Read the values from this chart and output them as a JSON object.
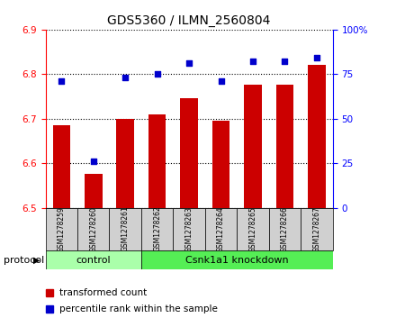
{
  "title": "GDS5360 / ILMN_2560804",
  "samples": [
    "GSM1278259",
    "GSM1278260",
    "GSM1278261",
    "GSM1278262",
    "GSM1278263",
    "GSM1278264",
    "GSM1278265",
    "GSM1278266",
    "GSM1278267"
  ],
  "bar_values": [
    6.685,
    6.575,
    6.7,
    6.71,
    6.745,
    6.695,
    6.775,
    6.775,
    6.82
  ],
  "percentile_values": [
    71,
    26,
    73,
    75,
    81,
    71,
    82,
    82,
    84
  ],
  "bar_color": "#cc0000",
  "dot_color": "#0000cc",
  "ylim_left": [
    6.5,
    6.9
  ],
  "ylim_right": [
    0,
    100
  ],
  "yticks_left": [
    6.5,
    6.6,
    6.7,
    6.8,
    6.9
  ],
  "yticks_right": [
    0,
    25,
    50,
    75,
    100
  ],
  "ytick_labels_right": [
    "0",
    "25",
    "50",
    "75",
    "100%"
  ],
  "n_control": 3,
  "control_label": "control",
  "knockdown_label": "Csnk1a1 knockdown",
  "protocol_label": "protocol",
  "legend_bar_label": "transformed count",
  "legend_dot_label": "percentile rank within the sample",
  "group_box_color": "#d0d0d0",
  "group_line_color": "#888888",
  "control_fill": "#aaffaa",
  "knockdown_fill": "#55ee55",
  "background_color": "#ffffff",
  "bar_width": 0.55
}
